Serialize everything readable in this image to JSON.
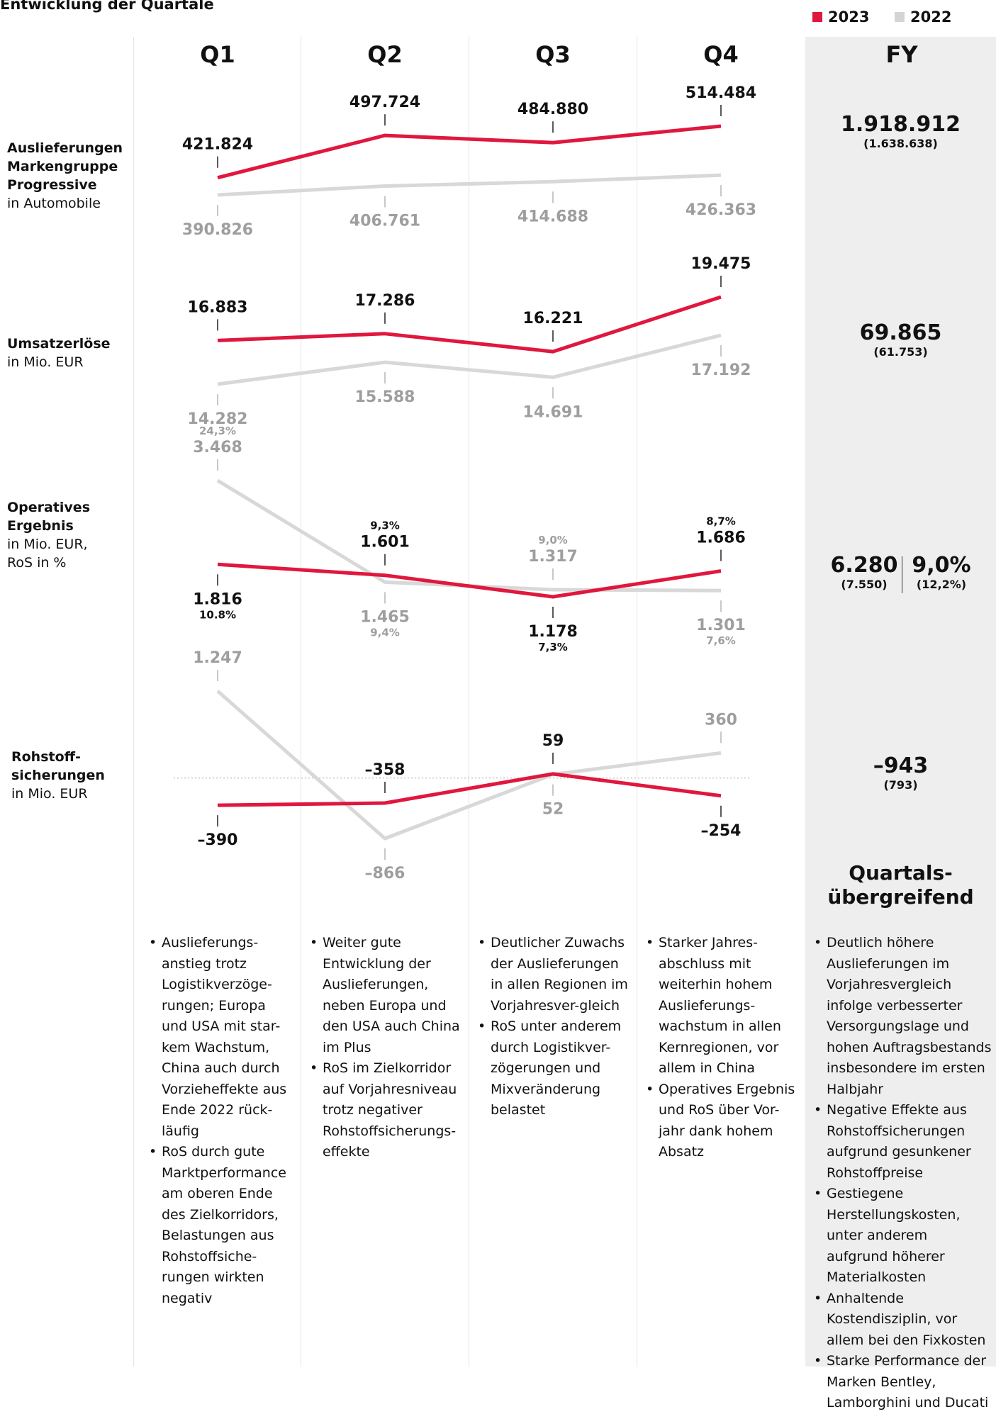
{
  "title": "Entwicklung der Quartale",
  "legend": [
    {
      "label": "2023",
      "color": "#e0173e"
    },
    {
      "label": "2022",
      "color": "#d4d4d4"
    }
  ],
  "quarters": [
    "Q1",
    "Q2",
    "Q3",
    "Q4"
  ],
  "fy_label": "FY",
  "rows": [
    {
      "label_bold": "Auslieferungen Markengruppe Progressive",
      "label_sub": "in Automobile",
      "fy_value": "1.918.912",
      "fy_prev": "(1.638.638)"
    },
    {
      "label_bold": "Umsatzerlöse",
      "label_sub": "in Mio. EUR",
      "fy_value": "69.865",
      "fy_prev": "(61.753)"
    },
    {
      "label_bold": "Operatives Ergebnis",
      "label_sub": "in Mio. EUR, RoS in %",
      "fy_value": "6.280",
      "fy_prev": "(7.550)",
      "fy_ros": "9,0%",
      "fy_ros_prev": "(12,2%)"
    },
    {
      "label_bold": "Rohstoff-sicherungen",
      "label_sub": "in Mio. EUR",
      "fy_value": "–943",
      "fy_prev": "(793)"
    }
  ],
  "chart_data": [
    {
      "type": "line",
      "categories": [
        "Q1",
        "Q2",
        "Q3",
        "Q4"
      ],
      "series": [
        {
          "name": "2023",
          "values": [
            421824,
            497724,
            484880,
            514484
          ],
          "labels": [
            "421.824",
            "497.724",
            "484.880",
            "514.484"
          ]
        },
        {
          "name": "2022",
          "values": [
            390826,
            406761,
            414688,
            426363
          ],
          "labels": [
            "390.826",
            "406.761",
            "414.688",
            "426.363"
          ]
        }
      ]
    },
    {
      "type": "line",
      "categories": [
        "Q1",
        "Q2",
        "Q3",
        "Q4"
      ],
      "series": [
        {
          "name": "2023",
          "values": [
            16883,
            17286,
            16221,
            19475
          ],
          "labels": [
            "16.883",
            "17.286",
            "16.221",
            "19.475"
          ]
        },
        {
          "name": "2022",
          "values": [
            14282,
            15588,
            14691,
            17192
          ],
          "labels": [
            "14.282",
            "15.588",
            "14.691",
            "17.192"
          ]
        }
      ]
    },
    {
      "type": "line",
      "categories": [
        "Q1",
        "Q2",
        "Q3",
        "Q4"
      ],
      "series": [
        {
          "name": "2023",
          "values": [
            1816,
            1601,
            1178,
            1686
          ],
          "labels": [
            "1.816",
            "1.601",
            "1.178",
            "1.686"
          ],
          "ros": [
            "10.8%",
            "9,3%",
            "7,3%",
            "8,7%"
          ]
        },
        {
          "name": "2022",
          "values": [
            3468,
            1465,
            1317,
            1301
          ],
          "labels": [
            "3.468",
            "1.465",
            "1.317",
            "1.301"
          ],
          "ros": [
            "24,3%",
            "9,4%",
            "9,0%",
            "7,6%"
          ]
        }
      ]
    },
    {
      "type": "line",
      "categories": [
        "Q1",
        "Q2",
        "Q3",
        "Q4"
      ],
      "series": [
        {
          "name": "2023",
          "values": [
            -390,
            -358,
            59,
            -254
          ],
          "labels": [
            "–390",
            "–358",
            "59",
            "–254"
          ]
        },
        {
          "name": "2022",
          "values": [
            1247,
            -866,
            52,
            360
          ],
          "labels": [
            "1.247",
            "–866",
            "52",
            "360"
          ]
        }
      ]
    }
  ],
  "overview_title": "Quartals-übergreifend",
  "texts": [
    [
      "Auslieferungs-anstieg trotz Logistikverzöge-rungen; Europa und USA mit star-kem Wachstum, China auch durch Vorzieheffekte aus Ende 2022 rück-läufig",
      "RoS durch gute Marktperformance am oberen Ende des Zielkorridors, Belastungen aus Rohstoffsiche-rungen wirkten negativ"
    ],
    [
      "Weiter gute Entwicklung der Auslieferungen, neben Europa und den USA auch China im Plus",
      "RoS im Zielkorridor auf Vorjahresniveau trotz negativer Rohstoffsicherungs-effekte"
    ],
    [
      "Deutlicher Zuwachs der Auslieferungen in allen Regionen im Vorjahresver-gleich",
      "RoS unter anderem durch Logistikver-zögerungen und Mixveränderung belastet"
    ],
    [
      "Starker Jahres-abschluss mit weiterhin hohem Auslieferungs-wachstum in allen Kernregionen, vor allem in China",
      "Operatives Ergebnis und RoS über Vor-jahr dank hohem Absatz"
    ],
    [
      "Deutlich höhere Auslieferungen im Vorjahresvergleich infolge verbesserter Versorgungslage und hohen Auftragsbestands insbesondere im ersten Halbjahr",
      "Negative Effekte aus Rohstoffsicherungen aufgrund gesunkener Rohstoffpreise",
      "Gestiegene Herstellungskosten, unter anderem aufgrund höherer Materialkosten",
      "Anhaltende Kostendisziplin, vor allem bei den Fixkosten",
      "Starke Performance der Marken Bentley, Lamborghini und Ducati"
    ]
  ]
}
